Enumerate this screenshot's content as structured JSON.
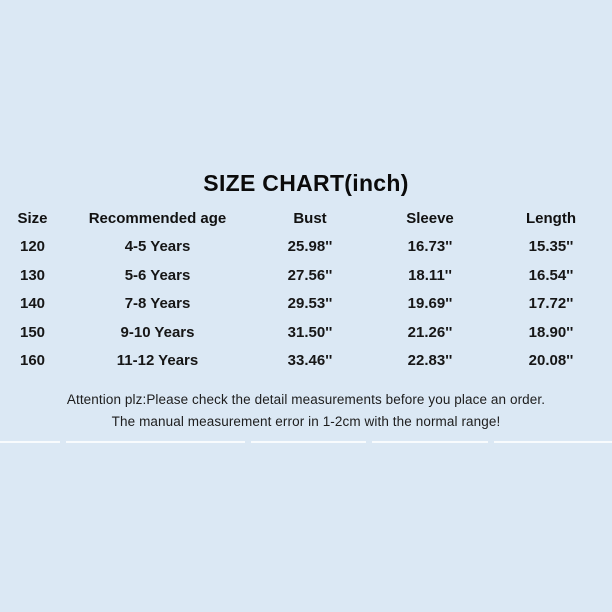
{
  "colors": {
    "background": "#dbe8f4",
    "text": "#141414",
    "separator_line": "#f2f7fb"
  },
  "chart_data": {
    "type": "table",
    "title": "SIZE CHART(inch)",
    "columns": [
      "Size",
      "Recommended age",
      "Bust",
      "Sleeve",
      "Length"
    ],
    "rows": [
      [
        "120",
        "4-5 Years",
        "25.98''",
        "16.73''",
        "15.35''"
      ],
      [
        "130",
        "5-6 Years",
        "27.56''",
        "18.11''",
        "16.54''"
      ],
      [
        "140",
        "7-8 Years",
        "29.53''",
        "19.69''",
        "17.72''"
      ],
      [
        "150",
        "9-10 Years",
        "31.50''",
        "21.26''",
        "18.90''"
      ],
      [
        "160",
        "11-12 Years",
        "33.46''",
        "22.83''",
        "20.08''"
      ]
    ],
    "notes": [
      "Attention plz:Please check the detail measurements before you place an order.",
      "The manual measurement error in 1-2cm with the normal range!"
    ]
  }
}
